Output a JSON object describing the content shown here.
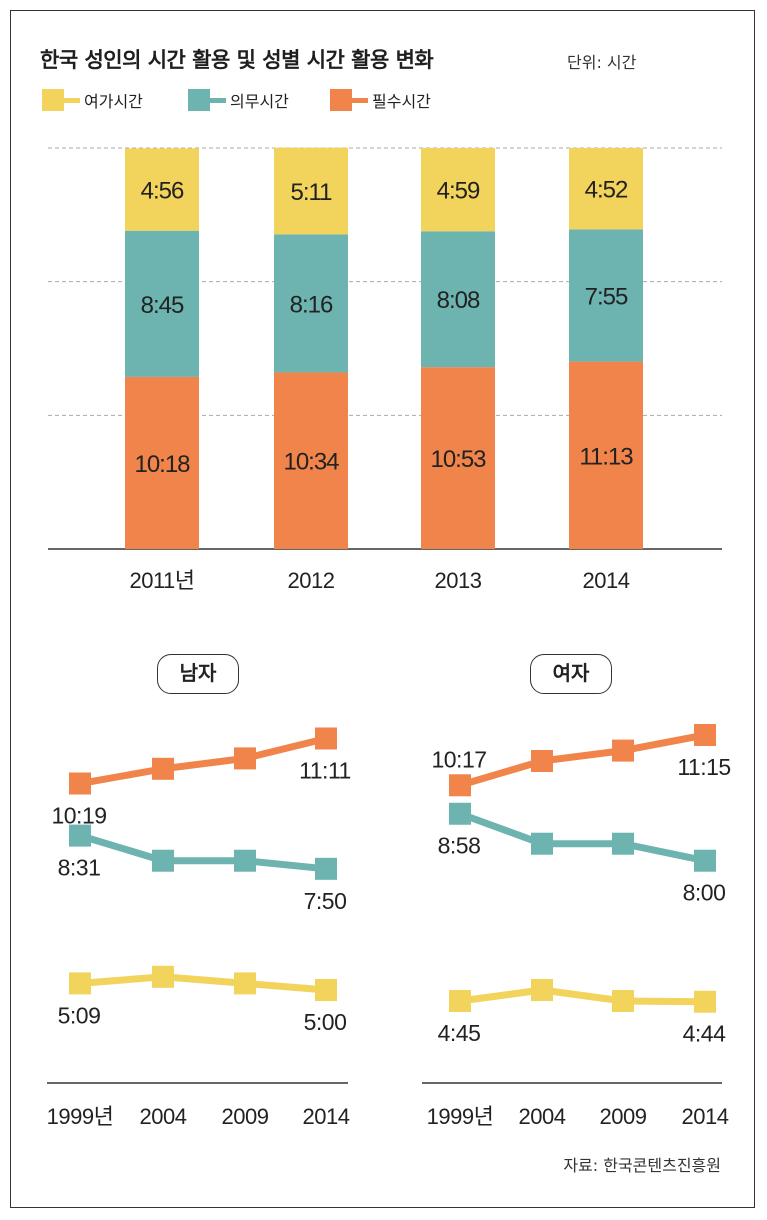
{
  "title": "한국 성인의 시간 활용 및 성별 시간 활용 변화",
  "unit": "단위: 시간",
  "source": "자료: 한국콘텐츠진흥원",
  "colors": {
    "leisure": "#f2d35b",
    "obligatory": "#6db3b0",
    "essential": "#f0844a"
  },
  "legend": [
    {
      "key": "leisure",
      "label": "여가시간"
    },
    {
      "key": "obligatory",
      "label": "의무시간"
    },
    {
      "key": "essential",
      "label": "필수시간"
    }
  ],
  "chart_data": [
    {
      "type": "bar",
      "stacked": true,
      "categories": [
        "2011년",
        "2012",
        "2013",
        "2014"
      ],
      "series": [
        {
          "name": "필수시간",
          "key": "essential",
          "values": [
            10.3,
            10.567,
            10.883,
            11.217
          ],
          "labels": [
            "10:18",
            "10:34",
            "10:53",
            "11:13"
          ]
        },
        {
          "name": "의무시간",
          "key": "obligatory",
          "values": [
            8.75,
            8.267,
            8.133,
            7.917
          ],
          "labels": [
            "8:45",
            "8:16",
            "8:08",
            "7:55"
          ]
        },
        {
          "name": "여가시간",
          "key": "leisure",
          "values": [
            4.933,
            5.183,
            4.983,
            4.867
          ],
          "labels": [
            "4:56",
            "5:11",
            "4:59",
            "4:52"
          ]
        }
      ],
      "ylim": [
        0,
        24
      ],
      "grid": true
    },
    {
      "type": "line",
      "title": "남자",
      "categories": [
        "1999년",
        "2004",
        "2009",
        "2014"
      ],
      "series": [
        {
          "name": "필수시간",
          "key": "essential",
          "values": [
            10.317,
            10.6,
            10.8,
            11.183
          ],
          "start_label": "10:19",
          "end_label": "11:11"
        },
        {
          "name": "의무시간",
          "key": "obligatory",
          "values": [
            8.517,
            8.0,
            8.0,
            7.833
          ],
          "start_label": "8:31",
          "end_label": "7:50"
        },
        {
          "name": "여가시간",
          "key": "leisure",
          "values": [
            5.15,
            5.3,
            5.15,
            5.0
          ],
          "start_label": "5:09",
          "end_label": "5:00"
        }
      ]
    },
    {
      "type": "line",
      "title": "여자",
      "categories": [
        "1999년",
        "2004",
        "2009",
        "2014"
      ],
      "series": [
        {
          "name": "필수시간",
          "key": "essential",
          "values": [
            10.283,
            10.75,
            10.95,
            11.25
          ],
          "start_label": "10:17",
          "end_label": "11:15"
        },
        {
          "name": "의무시간",
          "key": "obligatory",
          "values": [
            8.967,
            8.35,
            8.35,
            8.0
          ],
          "start_label": "8:58",
          "end_label": "8:00"
        },
        {
          "name": "여가시간",
          "key": "leisure",
          "values": [
            4.75,
            5.0,
            4.75,
            4.733
          ],
          "start_label": "4:45",
          "end_label": "4:44"
        }
      ]
    }
  ]
}
